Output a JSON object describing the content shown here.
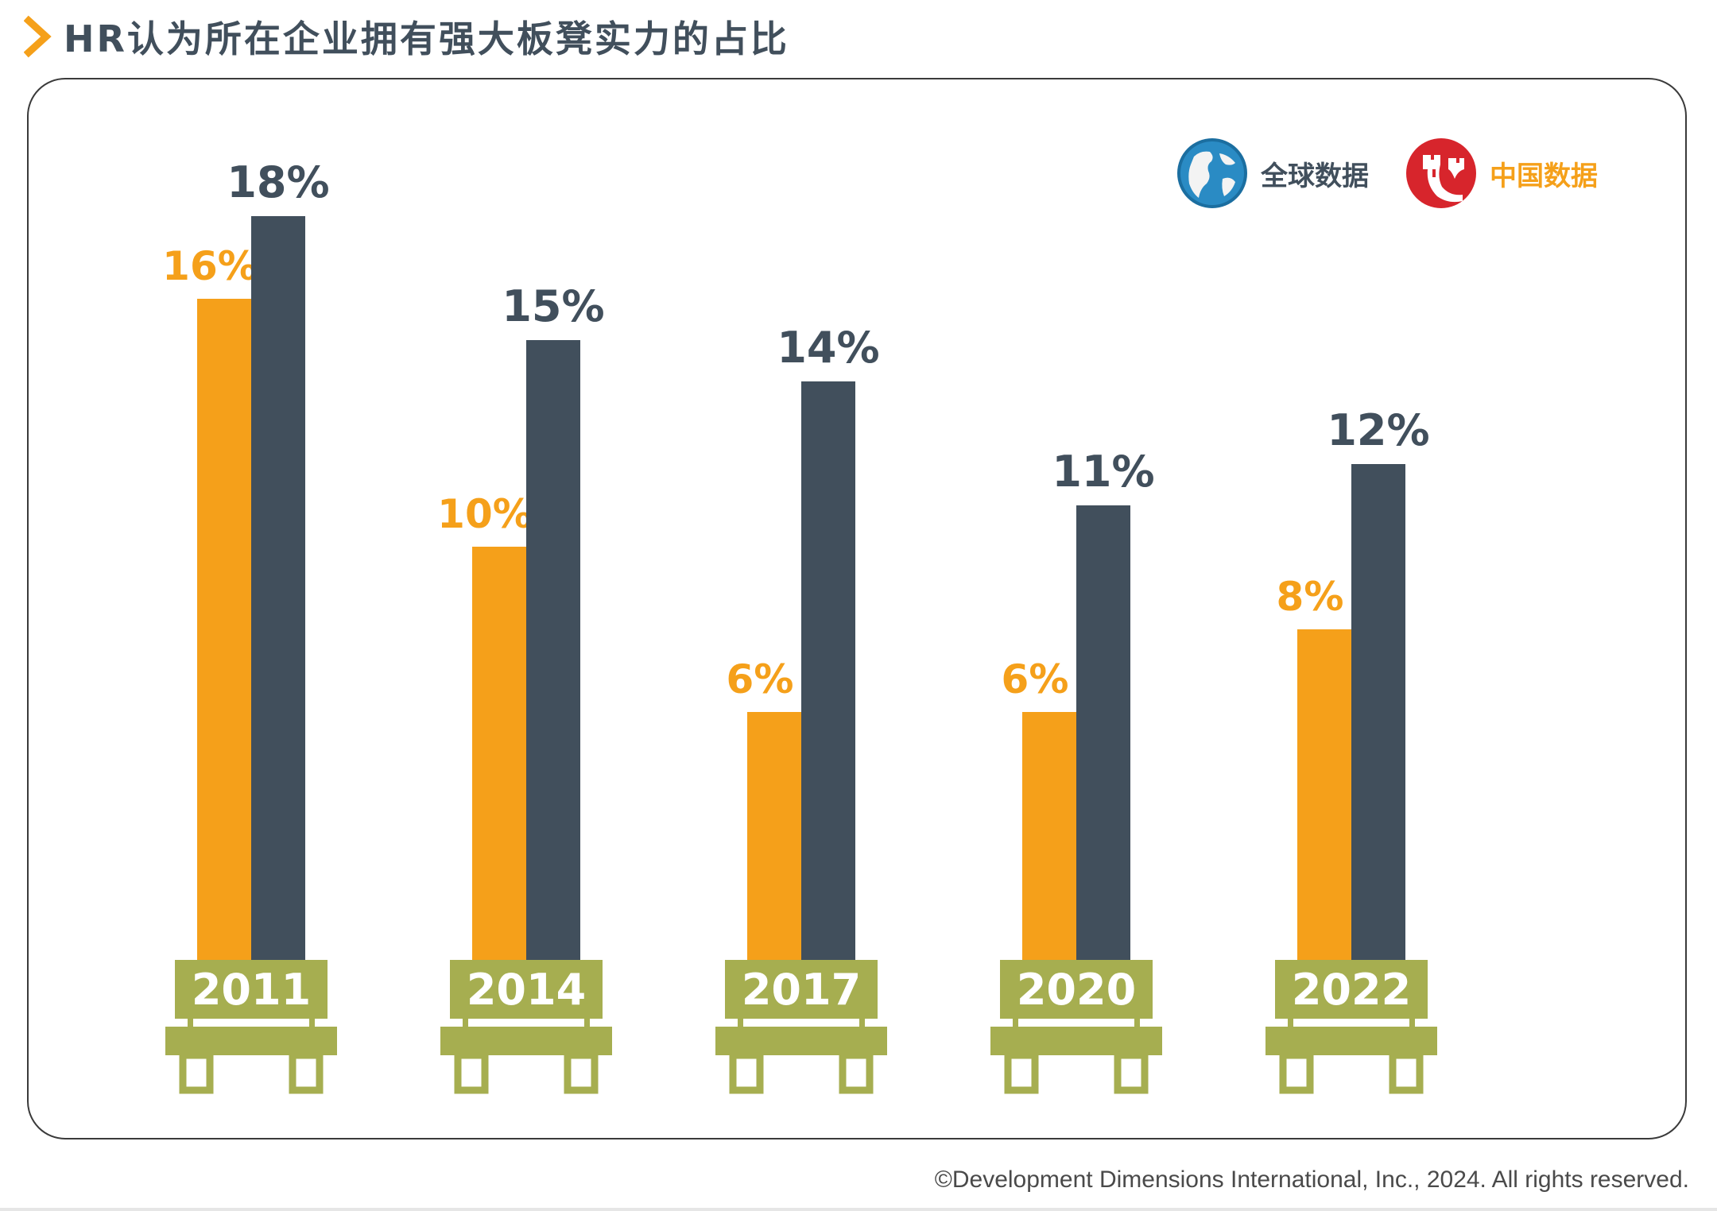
{
  "title": "HR认为所在企业拥有强大板凳实力的占比",
  "legend": {
    "global_label": "全球数据",
    "china_label": "中国数据"
  },
  "colors": {
    "china": "#f5a01a",
    "global": "#414f5c",
    "bench": "#a6ae50",
    "title": "#414f5c",
    "accent": "#f5a01a"
  },
  "icons": {
    "global": "globe-icon",
    "china": "great-wall-icon"
  },
  "chart_data": {
    "type": "bar",
    "categories": [
      "2011",
      "2014",
      "2017",
      "2020",
      "2022"
    ],
    "series": [
      {
        "name": "中国数据",
        "values": [
          16,
          10,
          6,
          6,
          8
        ],
        "labels": [
          "16%",
          "10%",
          "6%",
          "6%",
          "8%"
        ]
      },
      {
        "name": "全球数据",
        "values": [
          18,
          15,
          14,
          11,
          12
        ],
        "labels": [
          "18%",
          "15%",
          "14%",
          "11%",
          "12%"
        ]
      }
    ],
    "ylim": [
      0,
      18
    ],
    "grid": false,
    "legend_position": "top-right"
  },
  "footer": "©Development Dimensions International, Inc., 2024. All rights reserved."
}
